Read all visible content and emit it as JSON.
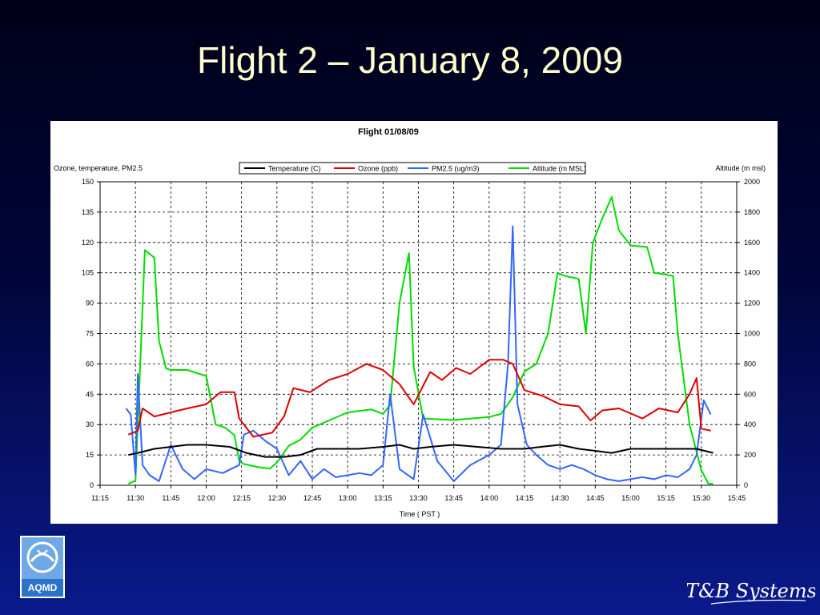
{
  "slide": {
    "title": "Flight 2 – January 8, 2009"
  },
  "logos": {
    "aqmd_text": "AQMD",
    "tb_text": "T&B Systems"
  },
  "colors": {
    "temperature": "#000000",
    "ozone": "#e00000",
    "pm25": "#3366ff",
    "altitude": "#00dd00",
    "title": "#ffffcc"
  },
  "chart_data": {
    "type": "line",
    "title": "Flight 01/08/09",
    "xlabel": "Time ( PST )",
    "ylabel": "Ozone, temperature, PM2.5",
    "y2label": "Altitude (m msl)",
    "xlim": [
      "11:15",
      "15:45"
    ],
    "ylim": [
      0,
      150
    ],
    "y2lim": [
      0,
      2000
    ],
    "x_ticks": [
      "11:15",
      "11:30",
      "11:45",
      "12:00",
      "12:15",
      "12:30",
      "12:45",
      "13:00",
      "13:15",
      "13:30",
      "13:45",
      "14:00",
      "14:15",
      "14:30",
      "14:45",
      "15:00",
      "15:15",
      "15:30",
      "15:45"
    ],
    "y_ticks": [
      0,
      15,
      30,
      45,
      60,
      75,
      90,
      105,
      120,
      135,
      150
    ],
    "y2_ticks": [
      0,
      200,
      400,
      600,
      800,
      1000,
      1200,
      1400,
      1600,
      1800,
      2000
    ],
    "grid": true,
    "legend_position": "top",
    "series": [
      {
        "name": "Temperature (C)",
        "axis": "left",
        "x": [
          "11:27",
          "11:31",
          "11:38",
          "11:45",
          "11:52",
          "12:00",
          "12:10",
          "12:17",
          "12:25",
          "12:33",
          "12:40",
          "12:47",
          "12:55",
          "13:05",
          "13:15",
          "13:22",
          "13:28",
          "13:35",
          "13:45",
          "13:55",
          "14:05",
          "14:15",
          "14:22",
          "14:30",
          "14:38",
          "14:45",
          "14:52",
          "15:00",
          "15:10",
          "15:20",
          "15:28",
          "15:35"
        ],
        "y": [
          15,
          16,
          18,
          19,
          20,
          20,
          19,
          16,
          14,
          14,
          15,
          18,
          18,
          18,
          19,
          20,
          18,
          19,
          20,
          19,
          18,
          18,
          19,
          20,
          18,
          17,
          16,
          18,
          18,
          18,
          18,
          16
        ]
      },
      {
        "name": "Ozone (ppb)",
        "axis": "left",
        "x": [
          "11:27",
          "11:31",
          "11:33",
          "11:38",
          "11:45",
          "11:52",
          "12:00",
          "12:06",
          "12:12",
          "12:14",
          "12:20",
          "12:28",
          "12:33",
          "12:37",
          "12:44",
          "12:52",
          "13:00",
          "13:08",
          "13:15",
          "13:22",
          "13:28",
          "13:35",
          "13:40",
          "13:46",
          "13:52",
          "14:00",
          "14:06",
          "14:10",
          "14:15",
          "14:23",
          "14:30",
          "14:38",
          "14:43",
          "14:48",
          "14:55",
          "15:05",
          "15:12",
          "15:20",
          "15:25",
          "15:28",
          "15:30",
          "15:34"
        ],
        "y": [
          25,
          27,
          38,
          34,
          36,
          38,
          40,
          46,
          46,
          33,
          24,
          26,
          34,
          48,
          46,
          52,
          55,
          60,
          57,
          50,
          40,
          56,
          52,
          58,
          55,
          62,
          62,
          60,
          47,
          44,
          40,
          39,
          32,
          37,
          38,
          33,
          38,
          36,
          45,
          53,
          28,
          27
        ]
      },
      {
        "name": "PM2.5 (ug/m3)",
        "axis": "left",
        "x": [
          "11:26",
          "11:28",
          "11:30",
          "11:31",
          "11:33",
          "11:36",
          "11:40",
          "11:45",
          "11:50",
          "11:55",
          "12:00",
          "12:07",
          "12:14",
          "12:16",
          "12:20",
          "12:25",
          "12:30",
          "12:35",
          "12:40",
          "12:45",
          "12:50",
          "12:55",
          "13:00",
          "13:05",
          "13:10",
          "13:15",
          "13:18",
          "13:22",
          "13:28",
          "13:32",
          "13:38",
          "13:45",
          "13:52",
          "14:00",
          "14:05",
          "14:08",
          "14:10",
          "14:12",
          "14:16",
          "14:20",
          "14:25",
          "14:30",
          "14:35",
          "14:40",
          "14:45",
          "14:50",
          "14:55",
          "15:00",
          "15:05",
          "15:10",
          "15:15",
          "15:20",
          "15:25",
          "15:28",
          "15:31",
          "15:34"
        ],
        "y": [
          38,
          35,
          5,
          55,
          10,
          5,
          2,
          20,
          8,
          3,
          8,
          6,
          10,
          25,
          27,
          22,
          18,
          5,
          12,
          3,
          8,
          4,
          5,
          6,
          5,
          10,
          45,
          8,
          3,
          35,
          12,
          2,
          10,
          15,
          20,
          60,
          128,
          40,
          20,
          15,
          10,
          8,
          10,
          8,
          5,
          3,
          2,
          3,
          4,
          3,
          5,
          4,
          8,
          15,
          42,
          35
        ]
      },
      {
        "name": "Altitude (m MSL)",
        "axis": "right",
        "x": [
          "11:27",
          "11:30",
          "11:34",
          "11:38",
          "11:40",
          "11:43",
          "11:45",
          "11:52",
          "12:00",
          "12:04",
          "12:08",
          "12:12",
          "12:14",
          "12:16",
          "12:22",
          "12:27",
          "12:30",
          "12:35",
          "12:40",
          "12:45",
          "13:00",
          "13:10",
          "13:15",
          "13:18",
          "13:22",
          "13:26",
          "13:28",
          "13:32",
          "13:45",
          "14:00",
          "14:05",
          "14:10",
          "14:15",
          "14:20",
          "14:25",
          "14:29",
          "14:32",
          "14:38",
          "14:41",
          "14:44",
          "14:48",
          "14:52",
          "14:55",
          "15:00",
          "15:07",
          "15:10",
          "15:18",
          "15:20",
          "15:25",
          "15:30",
          "15:33",
          "15:35"
        ],
        "y": [
          10,
          30,
          1550,
          1500,
          950,
          770,
          760,
          760,
          720,
          400,
          380,
          330,
          160,
          140,
          120,
          110,
          150,
          260,
          300,
          380,
          480,
          500,
          470,
          530,
          1200,
          1530,
          780,
          440,
          430,
          450,
          470,
          580,
          750,
          800,
          1000,
          1400,
          1380,
          1360,
          1000,
          1600,
          1760,
          1900,
          1680,
          1580,
          1570,
          1400,
          1380,
          1000,
          400,
          100,
          10,
          10
        ]
      }
    ]
  }
}
